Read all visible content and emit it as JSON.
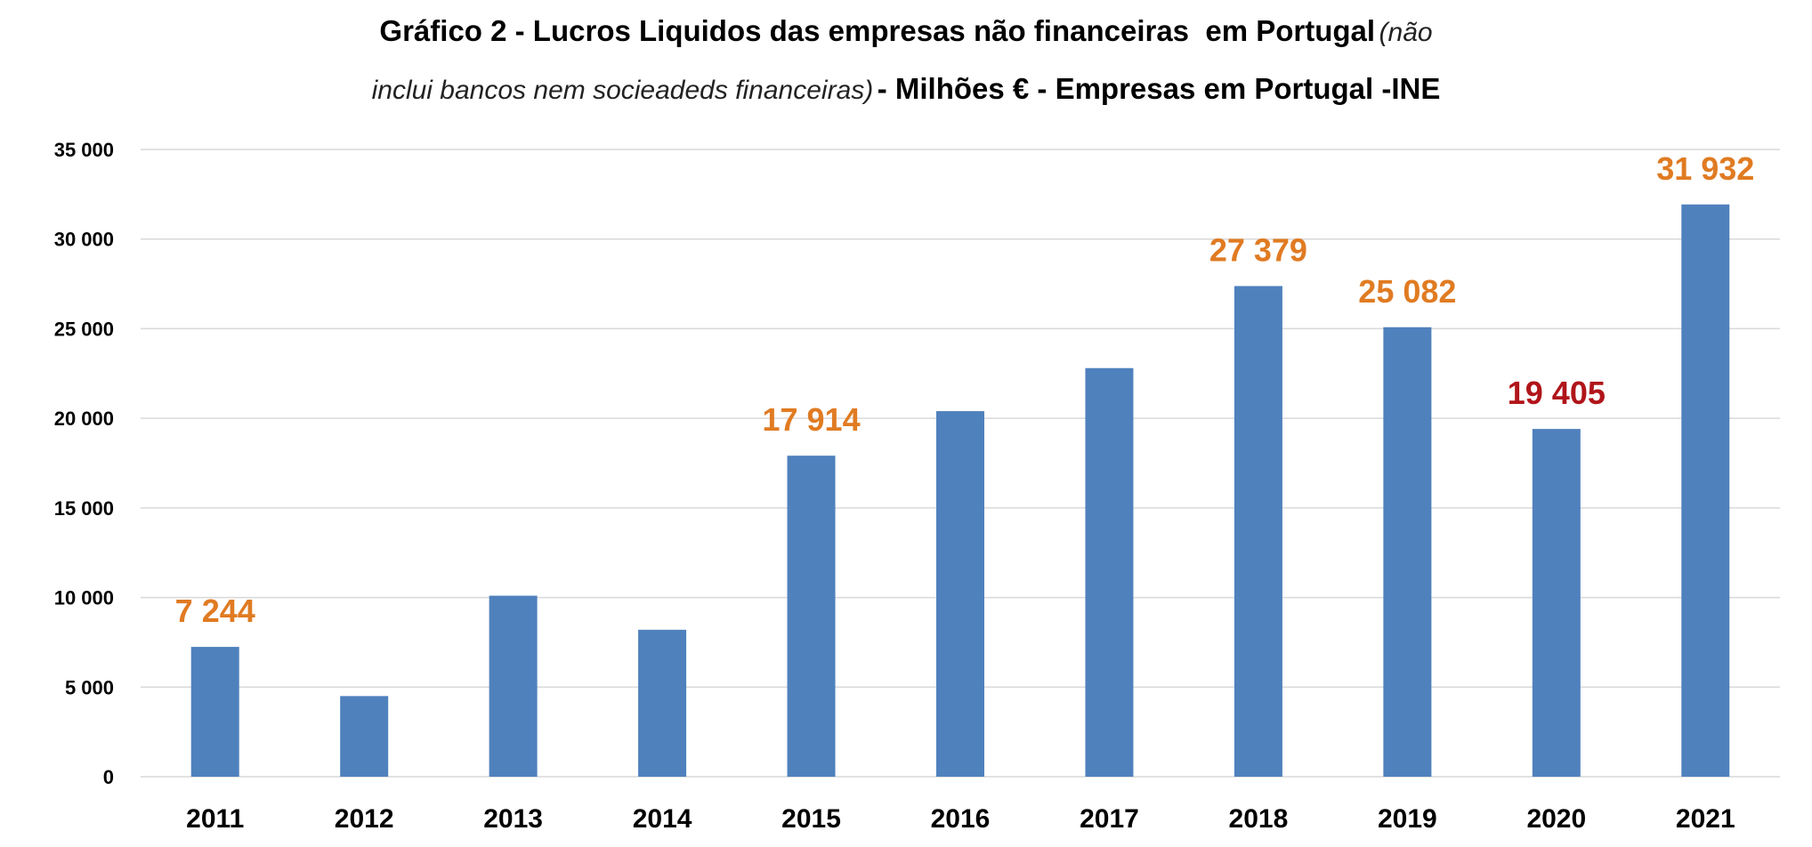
{
  "chart_data": {
    "type": "bar",
    "title_line1_bold": "Gráfico 2 - Lucros Liquidos das empresas não financeiras  em Portugal",
    "title_line1_italic": "(não",
    "title_line2_italic": "inclui bancos nem socieadeds financeiras)",
    "title_line2_bold": "- Milhões € - Empresas em Portugal -INE",
    "xlabel": "",
    "ylabel": "",
    "categories": [
      "2011",
      "2012",
      "2013",
      "2014",
      "2015",
      "2016",
      "2017",
      "2018",
      "2019",
      "2020",
      "2021"
    ],
    "values": [
      7244,
      4500,
      10100,
      8200,
      17914,
      20400,
      22800,
      27379,
      25082,
      19405,
      31932
    ],
    "data_labels": [
      {
        "category": "2011",
        "text": "7 244",
        "color": "#e07b22"
      },
      {
        "category": "2015",
        "text": "17 914",
        "color": "#e07b22"
      },
      {
        "category": "2018",
        "text": "27 379",
        "color": "#e07b22"
      },
      {
        "category": "2019",
        "text": "25 082",
        "color": "#e07b22"
      },
      {
        "category": "2020",
        "text": "19 405",
        "color": "#b0151a"
      },
      {
        "category": "2021",
        "text": "31 932",
        "color": "#e07b22"
      }
    ],
    "ylim": [
      0,
      35000
    ],
    "yticks": [
      0,
      5000,
      10000,
      15000,
      20000,
      25000,
      30000,
      35000
    ],
    "ytick_labels": [
      "0",
      "5 000",
      "10 000",
      "15 000",
      "20 000",
      "25 000",
      "30 000",
      "35 000"
    ],
    "grid": true,
    "legend": "none",
    "bar_color": "#4f81bd",
    "grid_color": "#d9d9d9"
  }
}
